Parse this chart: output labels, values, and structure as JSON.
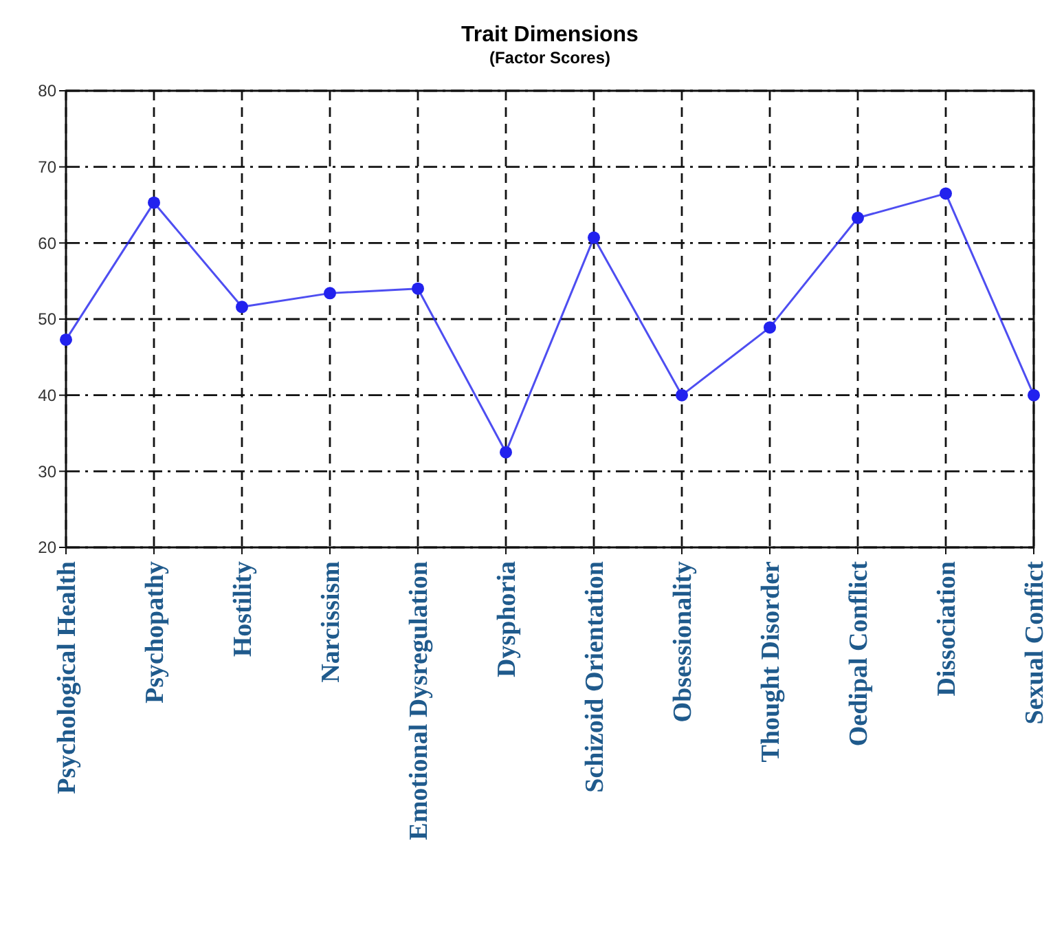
{
  "chart_data": {
    "type": "line",
    "title": "Trait Dimensions",
    "subtitle": "(Factor Scores)",
    "categories": [
      "Psychological Health",
      "Psychopathy",
      "Hostility",
      "Narcissism",
      "Emotional Dysregulation",
      "Dysphoria",
      "Schizoid Orientation",
      "Obsessionality",
      "Thought Disorder",
      "Oedipal Conflict",
      "Dissociation",
      "Sexual Confict"
    ],
    "series": [
      {
        "color": "#2222ee",
        "values": [
          47.3,
          65.3,
          51.6,
          53.4,
          54,
          32.5,
          60.7,
          40,
          48.9,
          63.3,
          66.5,
          40
        ]
      }
    ],
    "ylim": [
      20,
      80
    ],
    "yticks": [
      20,
      30,
      40,
      50,
      60,
      70,
      80
    ],
    "grid": true,
    "marker": "circle",
    "line_style": "solid"
  }
}
